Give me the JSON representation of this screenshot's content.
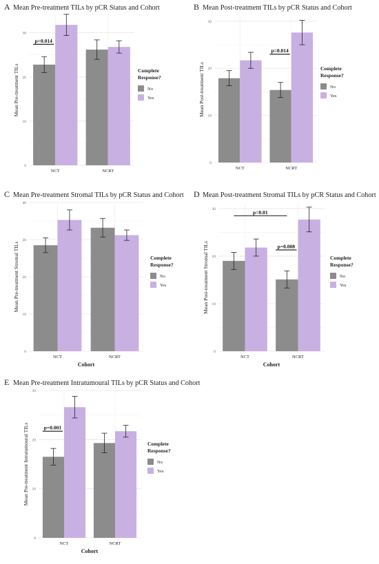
{
  "legend_title_line1": "Complete",
  "legend_title_line2": "Response?",
  "legend_no": "No",
  "legend_yes": "Yes",
  "colors": {
    "no": "#8c8c8c",
    "yes": "#c9b0e3",
    "grid": "#e6e6e6",
    "text": "#222222"
  },
  "chart_data": [
    {
      "panel": "A",
      "type": "bar",
      "title": "Mean Pre-treatment TILs by pCR Status and Cohort",
      "ylabel": "Mean Pre-treatment TILs",
      "xlabel": "",
      "categories": [
        "NCT",
        "NCRT"
      ],
      "ylim": [
        0,
        34
      ],
      "yticks": [
        0,
        10,
        20,
        30
      ],
      "series": [
        {
          "name": "No",
          "values": [
            22.8,
            26.2
          ],
          "err": [
            1.8,
            2.2
          ]
        },
        {
          "name": "Yes",
          "values": [
            31.8,
            26.8
          ],
          "err": [
            2.4,
            1.4
          ]
        }
      ],
      "annotations": [
        {
          "text": "p=0.014",
          "category": 0,
          "y": 27.4
        }
      ],
      "grid": true,
      "legend": "right"
    },
    {
      "panel": "B",
      "type": "bar",
      "title": "Mean Post-treatment TILs by pCR Status and Cohort",
      "ylabel": "Mean Post-treatment TILs",
      "xlabel": "",
      "categories": [
        "NCT",
        "NCRT"
      ],
      "ylim": [
        0,
        31
      ],
      "yticks": [
        0,
        10,
        20,
        30
      ],
      "series": [
        {
          "name": "No",
          "values": [
            17.9,
            15.4
          ],
          "err": [
            1.6,
            1.6
          ]
        },
        {
          "name": "Yes",
          "values": [
            21.7,
            27.6
          ],
          "err": [
            1.7,
            2.6
          ]
        }
      ],
      "annotations": [
        {
          "text": "p=0.014",
          "category": 1,
          "y": 23.0
        }
      ],
      "grid": true,
      "legend": "right"
    },
    {
      "panel": "C",
      "type": "bar",
      "title": "Mean Pre-treatment Stromal TILs by pCR Status and Cohort",
      "ylabel": "Mean Pre-treatment Stromal TILs",
      "xlabel": "Cohort",
      "categories": [
        "NCT",
        "NCRT"
      ],
      "ylim": [
        0,
        40
      ],
      "yticks": [
        0,
        10,
        20,
        30,
        40
      ],
      "series": [
        {
          "name": "No",
          "values": [
            28.5,
            33.2
          ],
          "err": [
            2.0,
            2.5
          ]
        },
        {
          "name": "Yes",
          "values": [
            35.3,
            31.2
          ],
          "err": [
            2.7,
            1.4
          ]
        }
      ],
      "annotations": [],
      "grid": true,
      "legend": "right"
    },
    {
      "panel": "D",
      "type": "bar",
      "title": "Mean Post-treatment Stromal TILs by pCR Status and Cohort",
      "ylabel": "Mean Post-treatment Stromal TILs",
      "xlabel": "Cohort",
      "categories": [
        "NCT",
        "NCRT"
      ],
      "ylim": [
        0,
        31
      ],
      "yticks": [
        0,
        10,
        20,
        30
      ],
      "series": [
        {
          "name": "No",
          "values": [
            19.0,
            15.1
          ],
          "err": [
            1.8,
            1.8
          ]
        },
        {
          "name": "Yes",
          "values": [
            21.8,
            27.7
          ],
          "err": [
            1.8,
            2.6
          ]
        }
      ],
      "annotations": [
        {
          "text": "p=0.01",
          "span": [
            0,
            1
          ],
          "y": 28.5
        },
        {
          "text": "p=0.008",
          "category": 1,
          "y": 21.3
        }
      ],
      "grid": true,
      "legend": "right"
    },
    {
      "panel": "E",
      "type": "bar",
      "title": "Mean Pre-treatment Intratumoural TILs by pCR Status and Cohort",
      "ylabel": "Mean Pre-treatment Intratumoural TILs",
      "xlabel": "Cohort",
      "categories": [
        "NCT",
        "NCRT"
      ],
      "ylim": [
        0,
        30
      ],
      "yticks": [
        0,
        10,
        20,
        30
      ],
      "series": [
        {
          "name": "No",
          "values": [
            16.5,
            19.3
          ],
          "err": [
            1.7,
            2.0
          ]
        },
        {
          "name": "Yes",
          "values": [
            26.6,
            21.7
          ],
          "err": [
            2.2,
            1.2
          ]
        }
      ],
      "annotations": [
        {
          "text": "p=0.001",
          "category": 0,
          "y": 21.7
        }
      ],
      "grid": true,
      "legend": "right"
    }
  ]
}
